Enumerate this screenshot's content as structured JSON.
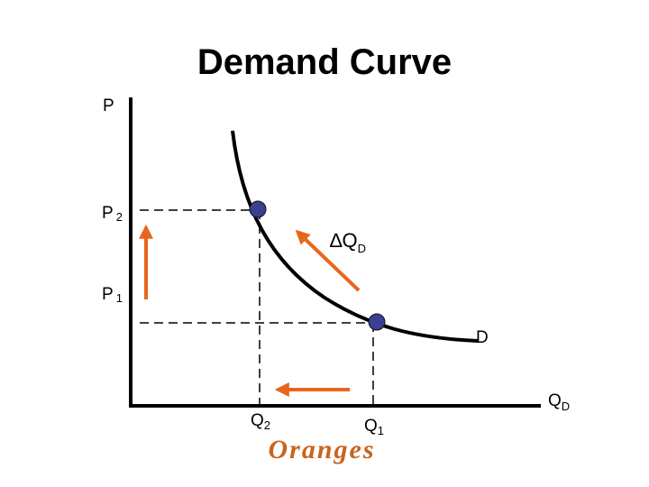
{
  "title": "Demand Curve",
  "y_axis_label": "P",
  "x_axis_label": {
    "main": "Q",
    "sub": "D"
  },
  "prices": [
    {
      "main": "P",
      "sub": "2"
    },
    {
      "main": "P",
      "sub": "1"
    }
  ],
  "quantities": [
    {
      "main": "Q",
      "sub": "2"
    },
    {
      "main": "Q",
      "sub": "1"
    }
  ],
  "change_label": {
    "symbol": "∆",
    "main": "Q",
    "sub": "D"
  },
  "curve_label": "D",
  "caption": "Oranges"
}
